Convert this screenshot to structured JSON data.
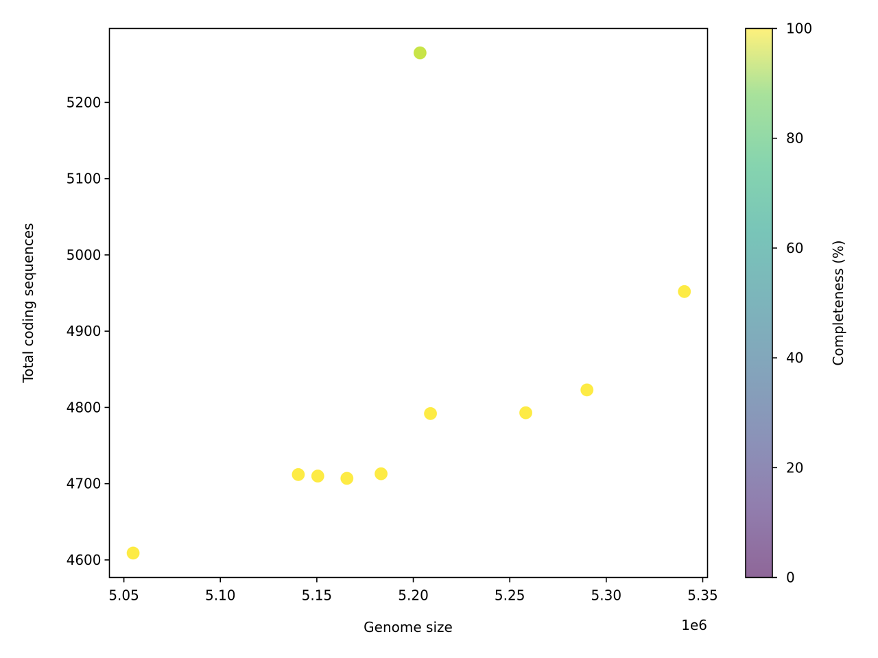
{
  "chart_data": {
    "type": "scatter",
    "title": "",
    "xlabel": "Genome size",
    "ylabel": "Total coding sequences",
    "x_offset_label": "1e6",
    "xlim": [
      5.0425,
      5.3525
    ],
    "ylim": [
      4577,
      5297
    ],
    "xticks": [
      5.05,
      5.1,
      5.15,
      5.2,
      5.25,
      5.3,
      5.35
    ],
    "xtick_labels": [
      "5.05",
      "5.10",
      "5.15",
      "5.20",
      "5.25",
      "5.30",
      "5.35"
    ],
    "yticks": [
      4600,
      4700,
      4800,
      4900,
      5000,
      5100,
      5200
    ],
    "ytick_labels": [
      "4600",
      "4700",
      "4800",
      "4900",
      "5000",
      "5100",
      "5200"
    ],
    "grid": false,
    "colorbar": {
      "label": "Completeness (%)",
      "range": [
        0,
        100
      ],
      "ticks": [
        0,
        20,
        40,
        60,
        80,
        100
      ],
      "tick_labels": [
        "0",
        "20",
        "40",
        "60",
        "80",
        "100"
      ],
      "colormap": "viridis",
      "alpha": 0.6
    },
    "points": [
      {
        "x": 5.0548,
        "y": 4609,
        "completeness": 100
      },
      {
        "x": 5.1404,
        "y": 4712,
        "completeness": 100
      },
      {
        "x": 5.1505,
        "y": 4710,
        "completeness": 100
      },
      {
        "x": 5.1656,
        "y": 4707,
        "completeness": 100
      },
      {
        "x": 5.1833,
        "y": 4713,
        "completeness": 100
      },
      {
        "x": 5.2035,
        "y": 5265,
        "completeness": 90
      },
      {
        "x": 5.2089,
        "y": 4792,
        "completeness": 100
      },
      {
        "x": 5.2583,
        "y": 4793,
        "completeness": 100
      },
      {
        "x": 5.29,
        "y": 4823,
        "completeness": 100
      },
      {
        "x": 5.3405,
        "y": 4952,
        "completeness": 100
      }
    ]
  }
}
